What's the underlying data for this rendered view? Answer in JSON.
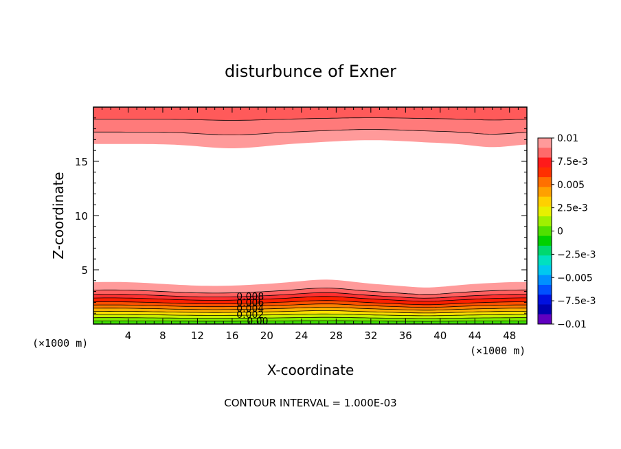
{
  "chart_data": {
    "type": "heatmap",
    "title": "disturbunce of Exner",
    "xlabel": "X-coordinate",
    "ylabel": "Z-coordinate",
    "x_unit": "(×1000 m)",
    "z_unit": "(×1000 m)",
    "xlim": [
      0,
      50
    ],
    "ylim": [
      0,
      20
    ],
    "x_ticks": [
      "4",
      "8",
      "12",
      "16",
      "20",
      "24",
      "28",
      "32",
      "36",
      "40",
      "44",
      "48"
    ],
    "y_ticks": [
      "5",
      "10",
      "15"
    ],
    "colorbar": {
      "min": -0.01,
      "max": 0.01,
      "labels": [
        "0.01",
        "7.5e-3",
        "0.005",
        "2.5e-3",
        "0",
        "−2.5e-3",
        "−0.005",
        "−7.5e-3",
        "−0.01"
      ],
      "colors": [
        "#ff9a9a",
        "#ff6a6a",
        "#ff1a1a",
        "#ff3000",
        "#ff7000",
        "#ffa000",
        "#ffd000",
        "#e8f000",
        "#a0f000",
        "#50e000",
        "#00d000",
        "#00d870",
        "#00e0c0",
        "#00c8f0",
        "#0090ff",
        "#0050ff",
        "#0010e0",
        "#0000b0",
        "#6000c0"
      ]
    },
    "contour_labels": [
      "0.008",
      "0.006",
      "0.004",
      "0.002",
      "0.00"
    ],
    "contour_interval_text": "CONTOUR INTERVAL = 1.000E-03",
    "grid": false
  }
}
